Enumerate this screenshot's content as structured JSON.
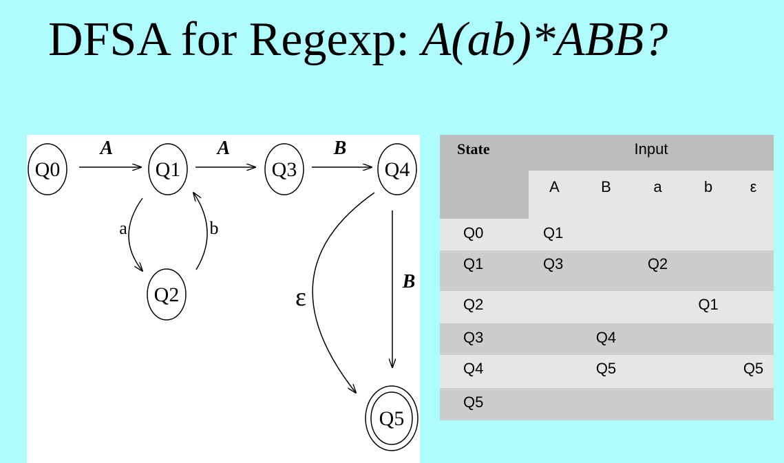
{
  "title": {
    "prefix": "DFSA for Regexp: ",
    "regexp": "A(ab)*ABB?"
  },
  "diagram": {
    "states": [
      "Q0",
      "Q1",
      "Q2",
      "Q3",
      "Q4",
      "Q5"
    ],
    "accepting_state": "Q5",
    "transitions": [
      {
        "from": "Q0",
        "to": "Q1",
        "label": "A"
      },
      {
        "from": "Q1",
        "to": "Q3",
        "label": "A"
      },
      {
        "from": "Q3",
        "to": "Q4",
        "label": "B"
      },
      {
        "from": "Q1",
        "to": "Q2",
        "label": "a"
      },
      {
        "from": "Q2",
        "to": "Q1",
        "label": "b"
      },
      {
        "from": "Q4",
        "to": "Q5",
        "label": "B"
      },
      {
        "from": "Q4",
        "to": "Q5",
        "label": "ε"
      }
    ]
  },
  "table": {
    "state_header": "State",
    "input_header": "Input",
    "symbols": [
      "A",
      "B",
      "a",
      "b",
      "ε"
    ],
    "rows": [
      {
        "state": "Q0",
        "A": "Q1",
        "B": "",
        "a": "",
        "b": "",
        "eps": ""
      },
      {
        "state": "Q1",
        "A": "Q3",
        "B": "",
        "a": "Q2",
        "b": "",
        "eps": ""
      },
      {
        "state": "Q2",
        "A": "",
        "B": "",
        "a": "",
        "b": "Q1",
        "eps": ""
      },
      {
        "state": "Q3",
        "A": "",
        "B": "Q4",
        "a": "",
        "b": "",
        "eps": ""
      },
      {
        "state": "Q4",
        "A": "",
        "B": "Q5",
        "a": "",
        "b": "",
        "eps": "Q5"
      },
      {
        "state": "Q5",
        "A": "",
        "B": "",
        "a": "",
        "b": "",
        "eps": ""
      }
    ]
  }
}
